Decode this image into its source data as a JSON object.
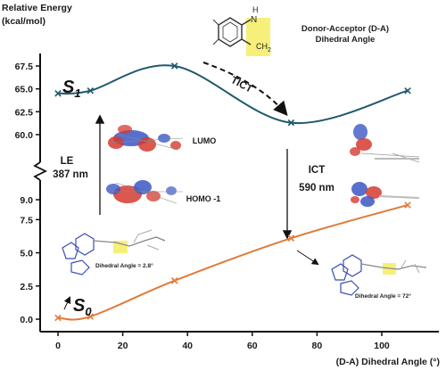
{
  "chart_data": {
    "type": "line",
    "ylabel": "Relative Energy\n(kcal/mol)",
    "xlabel": "(D-A) Dihedral Angle (°)",
    "xlim": [
      -5,
      115
    ],
    "x_ticks": [
      0,
      20,
      40,
      60,
      80,
      100
    ],
    "y_ticks_upper": [
      60.0,
      62.5,
      65.0,
      67.5
    ],
    "y_ticks_lower": [
      0.0,
      2.5,
      5.0,
      7.5,
      9.0
    ],
    "y_tick_labels_upper": [
      "60.0",
      "62.5",
      "65.0",
      "67.5"
    ],
    "y_tick_labels_lower": [
      "0.0",
      "2.5",
      "5.0",
      "7.5",
      "9.0"
    ],
    "axis_break": true,
    "series": [
      {
        "name": "S1",
        "label_main": "S",
        "label_sub": "1",
        "color": "#1f5a6e",
        "points": [
          [
            0,
            64.5
          ],
          [
            10,
            64.8
          ],
          [
            36,
            67.5
          ],
          [
            72,
            61.3
          ],
          [
            108,
            64.8
          ]
        ]
      },
      {
        "name": "S0",
        "label_main": "S",
        "label_sub": "0",
        "color": "#e07b39",
        "points": [
          [
            0,
            0.1
          ],
          [
            10,
            0.2
          ],
          [
            36,
            2.9
          ],
          [
            72,
            6.1
          ],
          [
            108,
            8.6
          ]
        ]
      }
    ],
    "annotations": {
      "ticT": "TICT",
      "le_label": "LE",
      "le_nm": "387 nm",
      "ict_label": "ICT",
      "ict_nm": "590 nm",
      "lumo": "LUMO",
      "homo": "HOMO -1",
      "dihedral_left": "Dihedral Angle = 2.8°",
      "dihedral_right": "Dihedral Angle = 72°",
      "da_title_1": "Donor-Acceptor (D-A)",
      "da_title_2": "Dihedral Angle",
      "nh_h": "H",
      "nh_n": "N",
      "ch2": "CH",
      "ch2_sub": "2"
    },
    "colors": {
      "s1": "#1f5a6e",
      "s0": "#e07b39",
      "highlight": "#f6f07a",
      "orbital_red": "#d63a2f",
      "orbital_blue": "#3b57c4"
    }
  }
}
